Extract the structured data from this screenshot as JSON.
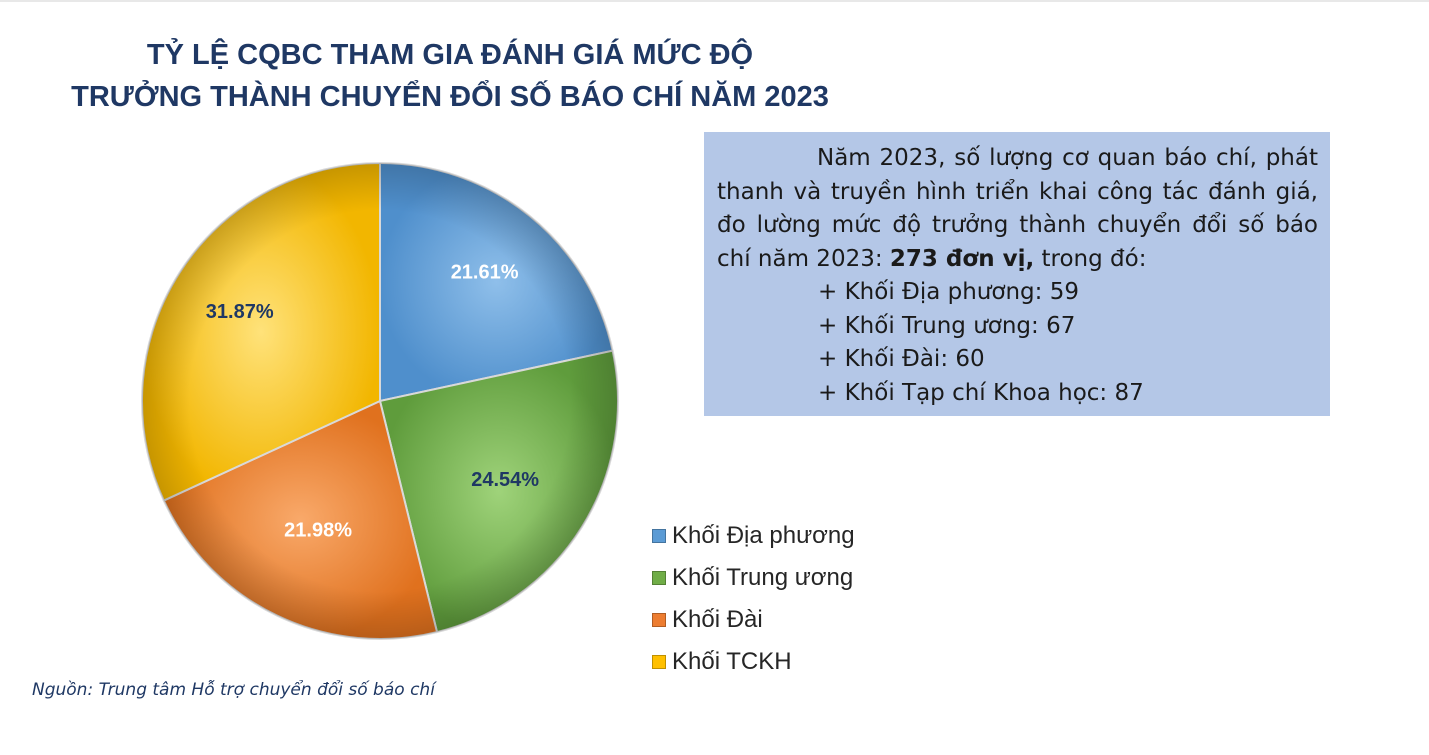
{
  "title": {
    "line1": "TỶ LỆ CQBC  THAM GIA  ĐÁNH GIÁ MỨC ĐỘ",
    "line2": "TRƯỞNG THÀNH CHUYỂN ĐỔI SỐ BÁO CHÍ NĂM 2023"
  },
  "info": {
    "para_before": "Năm 2023, số lượng cơ quan báo chí, phát thanh và truyền hình triển khai công tác đánh giá, đo lường mức độ trưởng thành chuyển đổi số báo chí năm 2023: ",
    "para_bold": "273 đơn vị,",
    "para_after": " trong đó:",
    "items": [
      "+ Khối Địa phương: 59",
      "+ Khối Trung ương: 67",
      "+ Khối Đài: 60",
      "+ Khối Tạp chí Khoa học: 87"
    ]
  },
  "source": "Nguồn: Trung tâm Hỗ trợ chuyển đổi số báo chí",
  "chart_data": {
    "type": "pie",
    "title": "TỶ LỆ CQBC THAM GIA ĐÁNH GIÁ MỨC ĐỘ TRƯỞNG THÀNH CHUYỂN ĐỔI SỐ BÁO CHÍ NĂM 2023",
    "categories": [
      "Khối Địa phương",
      "Khối Trung ương",
      "Khối Đài",
      "Khối TCKH"
    ],
    "values": [
      21.61,
      24.54,
      21.98,
      31.87
    ],
    "data_labels": [
      "21.61%",
      "24.54%",
      "21.98%",
      "31.87%"
    ],
    "colors": [
      "#5b9bd5",
      "#70ad47",
      "#ed7d31",
      "#ffc000"
    ],
    "label_colors": [
      "#ffffff",
      "#1f3864",
      "#ffffff",
      "#1f3864"
    ],
    "legend_position": "bottom-right",
    "start": "12 o'clock, clockwise"
  }
}
